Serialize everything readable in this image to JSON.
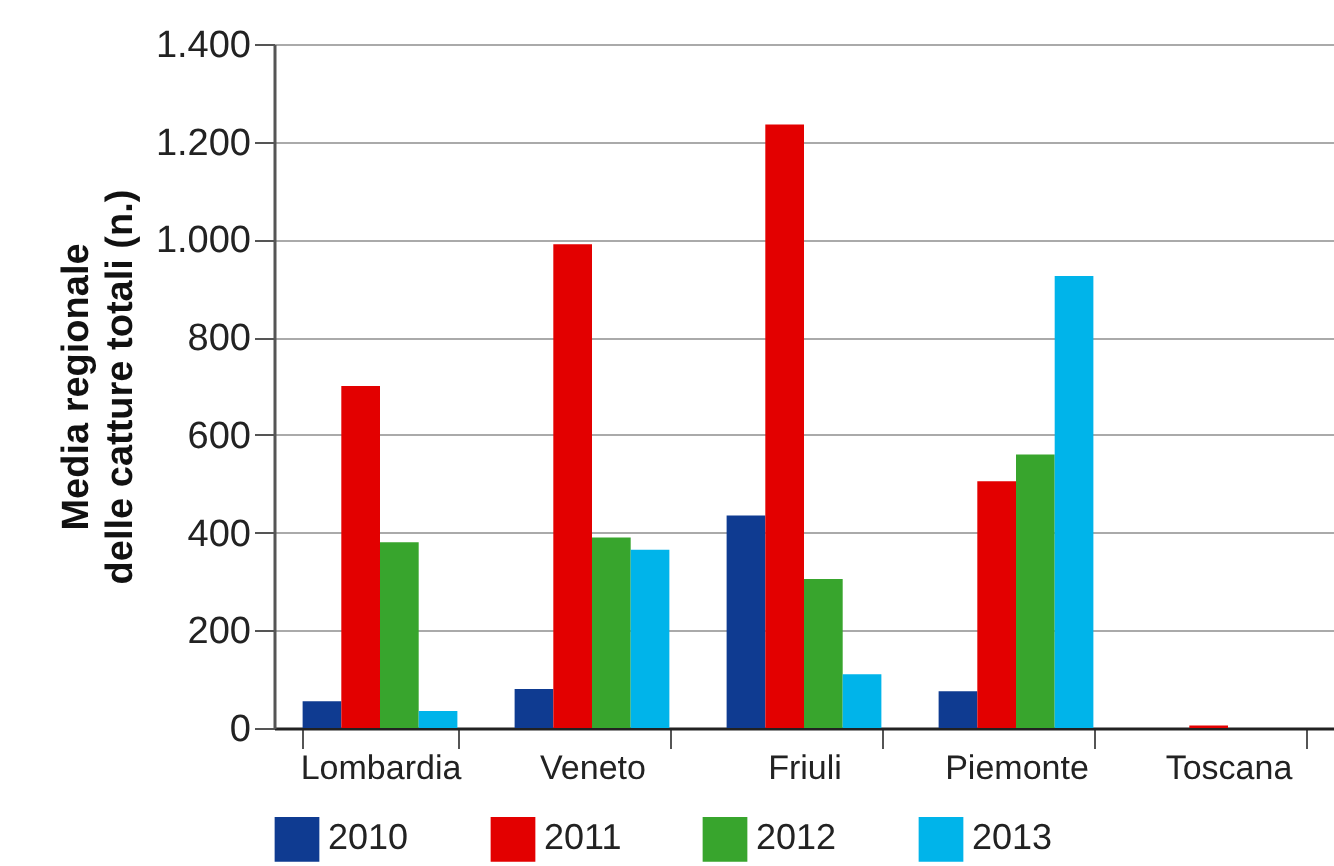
{
  "chart_data": {
    "type": "bar",
    "ylabel": "Media regionale\ndelle catture totali (n.)",
    "categories": [
      "Lombardia",
      "Veneto",
      "Friuli",
      "Piemonte",
      "Toscana"
    ],
    "series": [
      {
        "name": "2010",
        "color": "#0f3b91",
        "values": [
          55,
          80,
          435,
          75,
          0
        ]
      },
      {
        "name": "2011",
        "color": "#e30000",
        "values": [
          700,
          990,
          1235,
          505,
          5
        ]
      },
      {
        "name": "2012",
        "color": "#38a52d",
        "values": [
          380,
          390,
          305,
          560,
          0
        ]
      },
      {
        "name": "2013",
        "color": "#00b4ea",
        "values": [
          35,
          365,
          110,
          925,
          0
        ]
      }
    ],
    "ylim": [
      0,
      1400
    ],
    "yticks": [
      0,
      200,
      400,
      600,
      800,
      {
        "value": 1000,
        "label": "1.000"
      },
      {
        "value": 1200,
        "label": "1.200"
      },
      {
        "value": 1400,
        "label": "1.400"
      }
    ],
    "grid": "y",
    "legend": "bottom"
  }
}
